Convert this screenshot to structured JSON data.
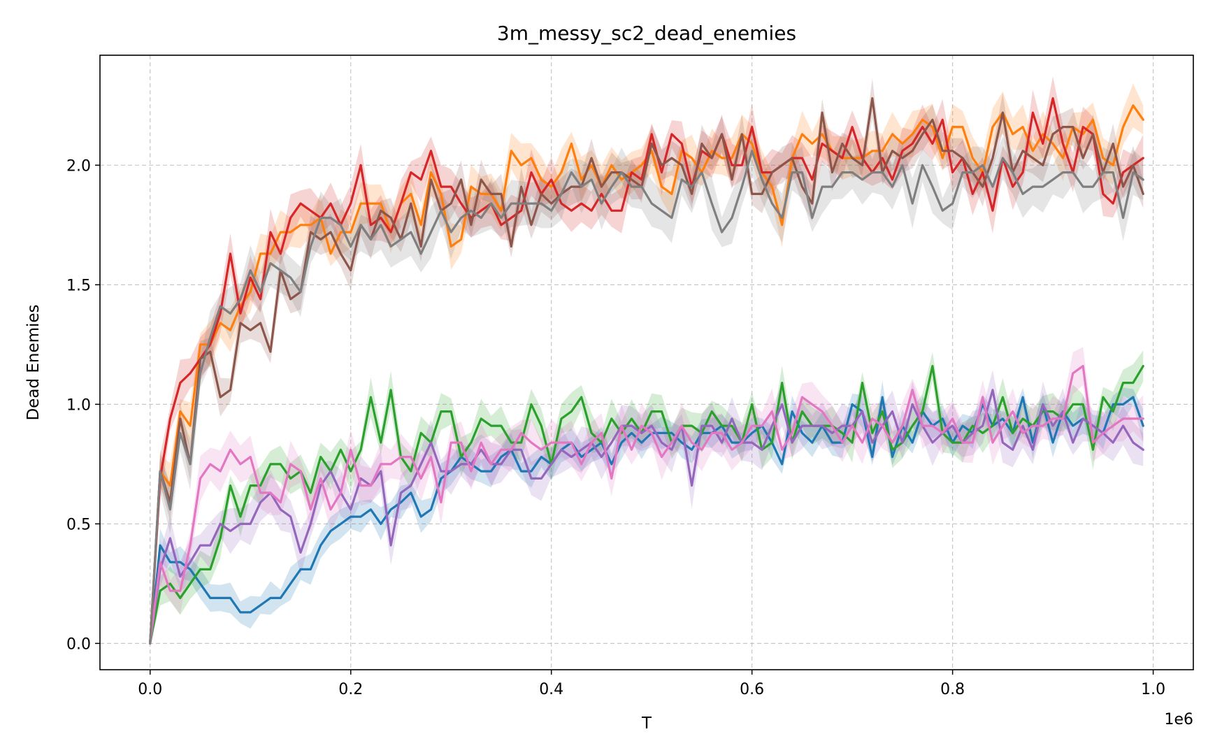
{
  "chart_data": {
    "type": "line",
    "title": "3m_messy_sc2_dead_enemies",
    "xlabel": "T",
    "ylabel": "Dead Enemies",
    "x_offset_text": "1e6",
    "xlim": [
      -50000,
      1040000
    ],
    "ylim": [
      -0.11,
      2.46
    ],
    "x_ticks": [
      0,
      200000,
      400000,
      600000,
      800000,
      1000000
    ],
    "x_tick_labels": [
      "0.0",
      "0.2",
      "0.4",
      "0.6",
      "0.8",
      "1.0"
    ],
    "y_ticks": [
      0,
      0.5,
      1.0,
      1.5,
      2.0
    ],
    "y_tick_labels": [
      "0.0",
      "0.5",
      "1.0",
      "1.5",
      "2.0"
    ],
    "grid": true,
    "x": [
      0,
      10000,
      20000,
      30000,
      40000,
      50000,
      60000,
      70000,
      80000,
      90000,
      100000,
      110000,
      120000,
      130000,
      140000,
      150000,
      160000,
      170000,
      180000,
      190000,
      200000,
      210000,
      220000,
      230000,
      240000,
      250000,
      260000,
      270000,
      280000,
      290000,
      300000,
      310000,
      320000,
      330000,
      340000,
      350000,
      360000,
      370000,
      380000,
      390000,
      400000,
      410000,
      420000,
      430000,
      440000,
      450000,
      460000,
      470000,
      480000,
      490000,
      500000,
      510000,
      520000,
      530000,
      540000,
      550000,
      560000,
      570000,
      580000,
      590000,
      600000,
      610000,
      620000,
      630000,
      640000,
      650000,
      660000,
      670000,
      680000,
      690000,
      700000,
      710000,
      720000,
      730000,
      740000,
      750000,
      760000,
      770000,
      780000,
      790000,
      800000,
      810000,
      820000,
      830000,
      840000,
      850000,
      860000,
      870000,
      880000,
      890000,
      900000,
      910000,
      920000,
      930000,
      940000,
      950000,
      960000,
      970000,
      980000,
      990000
    ],
    "series": [
      {
        "color": "#1f77b4",
        "band": 0.05,
        "values": [
          0,
          0.41,
          0.34,
          0.34,
          0.31,
          0.25,
          0.19,
          0.19,
          0.19,
          0.13,
          0.13,
          0.16,
          0.19,
          0.19,
          0.25,
          0.31,
          0.31,
          0.41,
          0.47,
          0.5,
          0.53,
          0.53,
          0.56,
          0.5,
          0.56,
          0.59,
          0.63,
          0.53,
          0.56,
          0.69,
          0.72,
          0.78,
          0.75,
          0.72,
          0.72,
          0.78,
          0.81,
          0.72,
          0.72,
          0.78,
          0.75,
          0.81,
          0.84,
          0.78,
          0.81,
          0.84,
          0.75,
          0.84,
          0.88,
          0.84,
          0.88,
          0.88,
          0.88,
          0.84,
          0.81,
          0.88,
          0.88,
          0.91,
          0.84,
          0.84,
          0.88,
          0.91,
          0.84,
          0.75,
          0.97,
          0.88,
          0.84,
          0.91,
          0.84,
          0.84,
          1.0,
          0.97,
          0.78,
          1.03,
          0.78,
          0.91,
          0.84,
          0.97,
          0.91,
          0.94,
          0.84,
          0.91,
          0.88,
          1.0,
          0.91,
          0.94,
          0.88,
          1.03,
          0.84,
          1.0,
          0.84,
          0.97,
          0.91,
          0.94,
          0.91,
          0.88,
          1.0,
          1.0,
          1.03,
          0.91
        ]
      },
      {
        "color": "#ff7f0e",
        "band": 0.07,
        "values": [
          0,
          0.72,
          0.66,
          0.97,
          0.91,
          1.25,
          1.25,
          1.34,
          1.31,
          1.41,
          1.47,
          1.63,
          1.63,
          1.72,
          1.72,
          1.75,
          1.75,
          1.78,
          1.63,
          1.72,
          1.72,
          1.84,
          1.84,
          1.84,
          1.72,
          1.84,
          1.88,
          1.75,
          1.97,
          1.88,
          1.66,
          1.69,
          1.91,
          1.88,
          1.88,
          1.81,
          2.06,
          2.0,
          2.03,
          1.94,
          1.91,
          1.97,
          2.09,
          1.94,
          2.0,
          1.91,
          2.0,
          1.94,
          1.97,
          2.0,
          2.06,
          1.91,
          1.88,
          2.06,
          2.03,
          1.97,
          2.06,
          2.03,
          2.03,
          2.13,
          2.09,
          1.97,
          1.91,
          1.75,
          2.03,
          2.13,
          2.09,
          2.13,
          2.06,
          2.03,
          2.03,
          2.03,
          2.06,
          2.06,
          2.13,
          2.09,
          2.13,
          2.19,
          2.16,
          2.03,
          2.16,
          2.16,
          2.03,
          1.97,
          2.16,
          2.22,
          2.13,
          2.16,
          2.06,
          2.13,
          2.09,
          2.03,
          2.16,
          2.13,
          2.19,
          2.03,
          2.0,
          2.16,
          2.25,
          2.19
        ]
      },
      {
        "color": "#2ca02c",
        "band": 0.06,
        "values": [
          0,
          0.22,
          0.25,
          0.19,
          0.25,
          0.31,
          0.31,
          0.44,
          0.66,
          0.53,
          0.66,
          0.66,
          0.75,
          0.75,
          0.69,
          0.72,
          0.63,
          0.78,
          0.72,
          0.81,
          0.72,
          0.81,
          1.03,
          0.84,
          1.06,
          0.78,
          0.72,
          0.88,
          0.84,
          0.97,
          0.97,
          0.78,
          0.84,
          0.94,
          0.91,
          0.91,
          0.84,
          0.84,
          1.0,
          0.91,
          0.75,
          0.94,
          0.97,
          1.03,
          0.88,
          0.84,
          0.94,
          0.88,
          0.94,
          0.88,
          0.97,
          0.97,
          0.84,
          0.91,
          0.91,
          0.88,
          0.97,
          0.91,
          0.91,
          0.84,
          1.0,
          0.81,
          0.84,
          1.09,
          0.84,
          0.97,
          0.91,
          0.91,
          0.91,
          0.88,
          0.84,
          1.09,
          0.88,
          0.97,
          0.81,
          0.84,
          0.91,
          0.97,
          1.16,
          0.88,
          0.84,
          0.84,
          0.91,
          0.88,
          0.91,
          1.03,
          0.88,
          0.94,
          0.91,
          0.97,
          0.97,
          0.94,
          1.0,
          1.0,
          0.81,
          1.03,
          0.97,
          1.09,
          1.09,
          1.16
        ]
      },
      {
        "color": "#d62728",
        "band": 0.07,
        "values": [
          0,
          0.69,
          0.94,
          1.09,
          1.13,
          1.19,
          1.25,
          1.38,
          1.63,
          1.38,
          1.53,
          1.44,
          1.72,
          1.63,
          1.78,
          1.84,
          1.81,
          1.78,
          1.84,
          1.75,
          1.84,
          2.0,
          1.75,
          1.78,
          1.72,
          1.84,
          1.97,
          1.94,
          2.06,
          1.91,
          1.91,
          1.84,
          1.78,
          1.81,
          1.84,
          1.75,
          1.78,
          1.81,
          1.97,
          1.88,
          1.94,
          1.84,
          1.81,
          1.84,
          1.81,
          1.88,
          1.81,
          1.81,
          1.97,
          1.94,
          2.13,
          1.97,
          2.13,
          2.09,
          1.91,
          2.06,
          2.03,
          2.13,
          2.0,
          2.0,
          2.16,
          1.97,
          1.97,
          2.0,
          2.03,
          2.03,
          1.94,
          2.09,
          2.06,
          2.03,
          2.16,
          2.03,
          1.97,
          2.03,
          1.94,
          2.06,
          2.09,
          2.16,
          2.09,
          2.19,
          1.97,
          2.03,
          1.88,
          1.97,
          1.81,
          2.03,
          1.91,
          1.97,
          2.22,
          2.09,
          2.28,
          2.09,
          1.97,
          2.16,
          2.13,
          1.88,
          1.84,
          1.97,
          2.0,
          2.03
        ]
      },
      {
        "color": "#9467bd",
        "band": 0.07,
        "values": [
          0,
          0.31,
          0.44,
          0.28,
          0.34,
          0.41,
          0.41,
          0.5,
          0.47,
          0.5,
          0.5,
          0.59,
          0.63,
          0.56,
          0.53,
          0.38,
          0.5,
          0.66,
          0.72,
          0.63,
          0.56,
          0.69,
          0.66,
          0.72,
          0.41,
          0.63,
          0.66,
          0.75,
          0.84,
          0.72,
          0.72,
          0.75,
          0.75,
          0.81,
          0.75,
          0.75,
          0.81,
          0.81,
          0.69,
          0.69,
          0.75,
          0.81,
          0.78,
          0.81,
          0.84,
          0.78,
          0.84,
          0.91,
          0.91,
          0.88,
          0.91,
          0.84,
          0.81,
          0.91,
          0.66,
          0.91,
          0.91,
          0.84,
          0.94,
          0.84,
          0.84,
          0.81,
          0.91,
          1.0,
          0.84,
          0.91,
          0.91,
          0.91,
          0.88,
          0.91,
          0.91,
          0.97,
          0.84,
          0.91,
          0.97,
          0.84,
          1.0,
          0.91,
          0.84,
          0.88,
          0.91,
          0.84,
          0.88,
          0.91,
          1.06,
          0.84,
          0.81,
          0.91,
          0.81,
          1.0,
          0.91,
          0.97,
          0.84,
          0.94,
          0.91,
          0.88,
          0.84,
          0.91,
          0.84,
          0.81
        ]
      },
      {
        "color": "#8c564b",
        "band": 0.06,
        "values": [
          0,
          0.72,
          0.59,
          0.94,
          0.75,
          1.19,
          1.22,
          1.03,
          1.06,
          1.34,
          1.31,
          1.34,
          1.22,
          1.56,
          1.44,
          1.47,
          1.72,
          1.69,
          1.72,
          1.63,
          1.56,
          1.75,
          1.69,
          1.81,
          1.78,
          1.69,
          1.84,
          1.66,
          1.94,
          1.81,
          1.84,
          1.94,
          1.75,
          1.94,
          1.88,
          1.88,
          1.66,
          1.91,
          1.75,
          1.88,
          1.84,
          1.88,
          1.91,
          1.91,
          2.03,
          1.91,
          1.97,
          1.97,
          1.94,
          1.91,
          2.09,
          2.0,
          2.03,
          2.0,
          1.88,
          2.09,
          2.03,
          2.13,
          1.94,
          2.13,
          1.88,
          1.88,
          1.97,
          2.0,
          2.03,
          1.91,
          1.84,
          2.22,
          1.97,
          2.09,
          2.03,
          2.0,
          2.28,
          1.97,
          2.06,
          2.03,
          2.06,
          2.13,
          2.19,
          2.06,
          2.06,
          2.03,
          1.97,
          1.91,
          2.03,
          2.22,
          1.97,
          2.06,
          2.03,
          2.0,
          2.13,
          2.16,
          2.16,
          2.03,
          2.13,
          1.97,
          2.09,
          1.91,
          2.0,
          1.88
        ]
      },
      {
        "color": "#e377c2",
        "band": 0.07,
        "values": [
          0,
          0.34,
          0.22,
          0.22,
          0.41,
          0.69,
          0.75,
          0.72,
          0.81,
          0.75,
          0.78,
          0.63,
          0.63,
          0.59,
          0.75,
          0.72,
          0.56,
          0.69,
          0.56,
          0.63,
          0.81,
          0.66,
          0.66,
          0.75,
          0.75,
          0.78,
          0.78,
          0.69,
          0.78,
          0.59,
          0.84,
          0.84,
          0.72,
          0.84,
          0.75,
          0.81,
          0.81,
          0.88,
          0.84,
          0.81,
          0.84,
          0.84,
          0.84,
          0.75,
          0.84,
          0.88,
          0.69,
          0.91,
          0.81,
          0.91,
          0.88,
          0.78,
          0.84,
          0.91,
          0.84,
          0.81,
          0.88,
          0.88,
          0.81,
          0.84,
          0.91,
          0.91,
          0.97,
          0.81,
          0.88,
          1.03,
          1.0,
          0.97,
          0.91,
          0.84,
          0.91,
          0.84,
          0.94,
          0.91,
          0.84,
          0.91,
          1.06,
          0.91,
          0.91,
          0.88,
          0.94,
          0.84,
          0.84,
          1.03,
          0.84,
          0.91,
          0.97,
          0.88,
          0.91,
          0.91,
          0.94,
          0.94,
          1.13,
          1.16,
          0.84,
          0.88,
          0.91,
          0.94,
          0.94,
          0.94
        ]
      },
      {
        "color": "#7f7f7f",
        "band": 0.08,
        "values": [
          0,
          0.72,
          0.56,
          0.88,
          0.75,
          1.13,
          1.28,
          1.41,
          1.38,
          1.44,
          1.56,
          1.47,
          1.59,
          1.56,
          1.53,
          1.47,
          1.66,
          1.78,
          1.78,
          1.75,
          1.66,
          1.75,
          1.69,
          1.75,
          1.66,
          1.69,
          1.72,
          1.63,
          1.72,
          1.81,
          1.72,
          1.78,
          1.81,
          1.78,
          1.84,
          1.78,
          1.84,
          1.84,
          1.84,
          1.84,
          1.81,
          1.88,
          1.97,
          1.91,
          1.94,
          1.84,
          1.91,
          1.97,
          1.91,
          1.91,
          1.84,
          1.81,
          1.78,
          1.94,
          1.91,
          1.97,
          1.84,
          1.72,
          1.78,
          1.91,
          2.06,
          1.94,
          1.84,
          1.78,
          1.97,
          1.97,
          1.78,
          1.91,
          1.91,
          1.97,
          1.97,
          1.94,
          1.97,
          1.97,
          1.91,
          2.0,
          1.84,
          2.0,
          1.91,
          1.81,
          1.84,
          1.97,
          1.97,
          2.0,
          1.91,
          2.03,
          1.97,
          1.88,
          1.91,
          1.91,
          1.94,
          1.97,
          1.97,
          1.91,
          1.91,
          1.97,
          1.97,
          1.78,
          1.97,
          1.94
        ]
      }
    ]
  }
}
